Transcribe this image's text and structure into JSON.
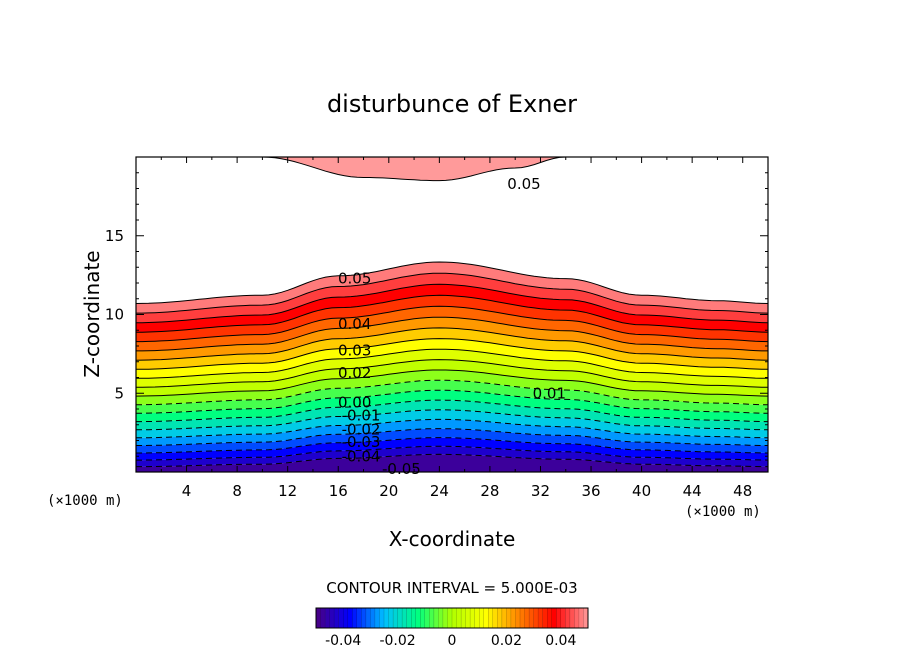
{
  "chart_data": {
    "type": "contour",
    "title": "disturbunce of Exner",
    "xlabel": "X-coordinate",
    "ylabel": "Z-coordinate",
    "x_unit": "(×1000 m)",
    "y_unit": "(×1000 m)",
    "xlim": [
      0,
      50
    ],
    "ylim": [
      0,
      20
    ],
    "x_ticks": [
      4,
      8,
      12,
      16,
      20,
      24,
      28,
      32,
      36,
      40,
      44,
      48
    ],
    "y_ticks": [
      5,
      10,
      15
    ],
    "contour_interval_text": "CONTOUR INTERVAL = 5.000E-03",
    "contour_interval": 0.005,
    "levels": [
      -0.05,
      -0.045,
      -0.04,
      -0.035,
      -0.03,
      -0.025,
      -0.02,
      -0.015,
      -0.01,
      -0.005,
      0.0,
      0.005,
      0.01,
      0.015,
      0.02,
      0.025,
      0.03,
      0.035,
      0.04,
      0.045,
      0.05
    ],
    "base_heights_by_x": {
      "x": [
        0,
        10,
        16,
        24,
        34,
        40,
        46,
        50
      ],
      "z": [
        0,
        0.15,
        0.5,
        0.75,
        0.45,
        0.15,
        0.05,
        0
      ]
    },
    "upper_region": {
      "level": 0.05,
      "x": [
        10,
        18,
        24,
        30,
        34
      ],
      "z": [
        20,
        18.7,
        18.5,
        19.3,
        20
      ]
    },
    "contour_labels": [
      {
        "text": "0.05",
        "x": 30.7,
        "z": 18.3
      },
      {
        "text": "0.05",
        "x": 17.3,
        "z": 12.3
      },
      {
        "text": "0.04",
        "x": 17.3,
        "z": 9.4
      },
      {
        "text": "0.03",
        "x": 17.3,
        "z": 7.7
      },
      {
        "text": "0.02",
        "x": 17.3,
        "z": 6.3
      },
      {
        "text": "0.01",
        "x": 32.7,
        "z": 5.0
      },
      {
        "text": "0.00",
        "x": 17.3,
        "z": 4.4
      },
      {
        "text": "-0.01",
        "x": 17.8,
        "z": 3.6
      },
      {
        "text": "-0.02",
        "x": 17.8,
        "z": 2.7
      },
      {
        "text": "-0.03",
        "x": 17.8,
        "z": 1.9
      },
      {
        "text": "-0.04",
        "x": 17.8,
        "z": 1.0
      },
      {
        "text": "-0.05",
        "x": 21.0,
        "z": 0.2
      }
    ],
    "colorbar_ticks": [
      "-0.04",
      "-0.02",
      "0",
      "0.02",
      "0.04"
    ],
    "colorbar_range": [
      -0.05,
      0.05
    ]
  },
  "colors": {
    "ramp": [
      "#4b0082",
      "#0000ff",
      "#00bfff",
      "#00ff80",
      "#b0ff00",
      "#ffff00",
      "#ff8000",
      "#ff0000",
      "#ff9a9a"
    ]
  }
}
